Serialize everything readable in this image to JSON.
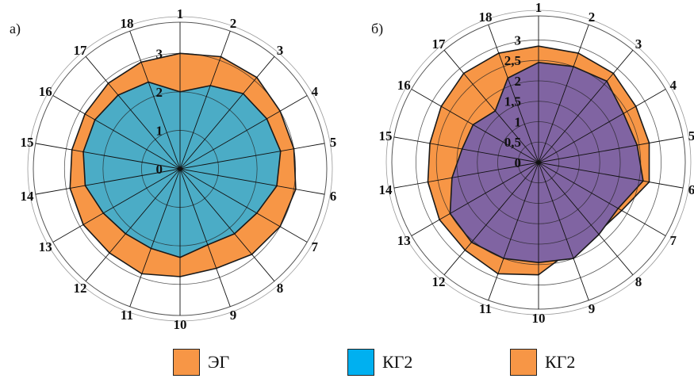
{
  "chart_data": [
    {
      "type": "radar",
      "panel_label": "а)",
      "categories": [
        "1",
        "2",
        "3",
        "4",
        "5",
        "6",
        "7",
        "8",
        "9",
        "10",
        "11",
        "12",
        "13",
        "14",
        "15",
        "16",
        "17",
        "18"
      ],
      "rlim": [
        0,
        3.5
      ],
      "ticks": [
        "0",
        "1",
        "2",
        "3"
      ],
      "tick_values": [
        0,
        1,
        2,
        3
      ],
      "series": [
        {
          "name": "ЭГ",
          "color": "#F79646",
          "values": [
            3.0,
            3.1,
            3.1,
            3.0,
            3.0,
            3.05,
            3.0,
            2.9,
            2.75,
            2.8,
            2.9,
            2.85,
            2.9,
            2.9,
            2.85,
            2.85,
            2.9,
            2.95
          ]
        },
        {
          "name": "КГ2",
          "color": "#4BACC6",
          "values": [
            2.0,
            2.3,
            2.55,
            2.6,
            2.65,
            2.55,
            2.3,
            2.2,
            2.1,
            2.3,
            2.2,
            2.2,
            2.3,
            2.5,
            2.55,
            2.55,
            2.5,
            2.4
          ]
        }
      ]
    },
    {
      "type": "radar",
      "panel_label": "б)",
      "categories": [
        "1",
        "2",
        "3",
        "4",
        "5",
        "6",
        "7",
        "8",
        "9",
        "10",
        "11",
        "12",
        "13",
        "14",
        "15",
        "16",
        "17",
        "18"
      ],
      "rlim": [
        0,
        3.3
      ],
      "ticks": [
        "0",
        "0,5",
        "1",
        "1,5",
        "2",
        "2,5",
        "3"
      ],
      "tick_values": [
        0,
        0.5,
        1,
        1.5,
        2,
        2.5,
        3
      ],
      "series": [
        {
          "name": "ЭГ",
          "color": "#F79646",
          "values": [
            2.85,
            2.85,
            2.85,
            2.75,
            2.75,
            2.75,
            2.35,
            2.25,
            2.3,
            2.75,
            2.9,
            2.8,
            2.8,
            2.75,
            2.7,
            2.75,
            2.85,
            2.85
          ]
        },
        {
          "name": "КГ2",
          "color": "#8064A2",
          "values": [
            2.45,
            2.5,
            2.6,
            2.4,
            2.45,
            2.6,
            2.25,
            2.3,
            2.5,
            2.45,
            2.5,
            2.55,
            2.5,
            2.15,
            1.9,
            1.85,
            1.65,
            2.2
          ]
        }
      ]
    }
  ],
  "legend": [
    {
      "label": "ЭГ",
      "color": "#F79646"
    },
    {
      "label": "КГ2",
      "color": "#00B0F0"
    },
    {
      "label": "КГ2",
      "color": "#F79646"
    }
  ]
}
